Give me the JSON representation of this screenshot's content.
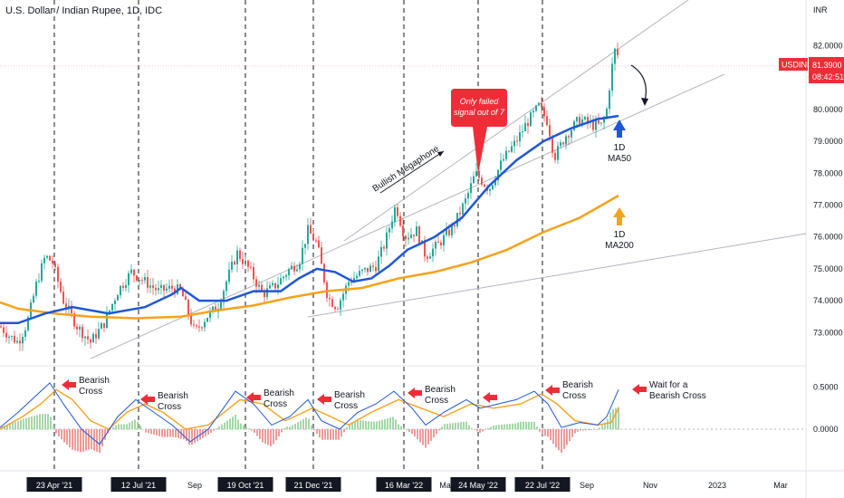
{
  "chart_data": {
    "type": "line",
    "title": "U.S. Dollar / Indian Rupee, 1D, IDC",
    "symbol": "USDINR",
    "y_unit": "INR",
    "last_price": "81.3900",
    "countdown": "08:42:51",
    "ylim": [
      72.6,
      82.6
    ],
    "price_ticks": [
      "82.0000",
      "81.0000",
      "80.0000",
      "79.0000",
      "78.0000",
      "77.0000",
      "76.0000",
      "75.0000",
      "74.0000",
      "73.0000"
    ],
    "osc_ticks": [
      "0.5000",
      "0.0000"
    ],
    "x_labels": [
      {
        "label": "Sep",
        "x": 215
      },
      {
        "label": "Mar",
        "x": 493
      },
      {
        "label": "Jul",
        "x": 577
      },
      {
        "label": "Sep",
        "x": 648
      },
      {
        "label": "Nov",
        "x": 718
      },
      {
        "label": "2023",
        "x": 792
      },
      {
        "label": "Mar",
        "x": 862
      }
    ],
    "date_markers": [
      "23 Apr '21",
      "12 Jul '21",
      "19 Oct '21",
      "21 Dec '21",
      "16 Mar '22",
      "24 May '22",
      "22 Jul '22"
    ],
    "colors": {
      "ma50": "#1e56d9",
      "ma200": "#f7a21b",
      "price_up": "#26a69a",
      "price_down": "#ef5350",
      "arrow": "#ef2d38",
      "channel": "#b2b5be"
    },
    "series": [
      {
        "name": "MA50"
      },
      {
        "name": "MA200"
      }
    ],
    "ma50": [
      [
        0,
        73.3
      ],
      [
        20,
        73.3
      ],
      [
        50,
        73.6
      ],
      [
        80,
        73.8
      ],
      [
        120,
        73.6
      ],
      [
        160,
        73.8
      ],
      [
        190,
        74.2
      ],
      [
        200,
        74.4
      ],
      [
        220,
        74.0
      ],
      [
        250,
        74.0
      ],
      [
        280,
        74.3
      ],
      [
        310,
        74.3
      ],
      [
        330,
        74.7
      ],
      [
        350,
        75.0
      ],
      [
        370,
        74.9
      ],
      [
        390,
        74.6
      ],
      [
        410,
        74.7
      ],
      [
        430,
        75.1
      ],
      [
        450,
        75.6
      ],
      [
        480,
        76.0
      ],
      [
        510,
        76.6
      ],
      [
        540,
        77.6
      ],
      [
        570,
        78.4
      ],
      [
        600,
        79.0
      ],
      [
        630,
        79.4
      ],
      [
        660,
        79.7
      ],
      [
        683,
        79.8
      ]
    ],
    "ma200": [
      [
        0,
        73.95
      ],
      [
        20,
        73.75
      ],
      [
        60,
        73.6
      ],
      [
        100,
        73.5
      ],
      [
        150,
        73.45
      ],
      [
        200,
        73.5
      ],
      [
        240,
        73.7
      ],
      [
        280,
        73.85
      ],
      [
        320,
        74.1
      ],
      [
        360,
        74.3
      ],
      [
        400,
        74.4
      ],
      [
        440,
        74.7
      ],
      [
        480,
        74.9
      ],
      [
        520,
        75.2
      ],
      [
        560,
        75.6
      ],
      [
        600,
        76.15
      ],
      [
        640,
        76.6
      ],
      [
        683,
        77.3
      ]
    ],
    "price": [
      [
        0,
        73.2
      ],
      [
        10,
        72.9
      ],
      [
        20,
        72.7
      ],
      [
        30,
        73.3
      ],
      [
        40,
        74.5
      ],
      [
        50,
        75.4
      ],
      [
        58,
        75.2
      ],
      [
        70,
        74.0
      ],
      [
        85,
        73.2
      ],
      [
        100,
        72.7
      ],
      [
        115,
        73.3
      ],
      [
        130,
        74.3
      ],
      [
        145,
        74.9
      ],
      [
        160,
        74.6
      ],
      [
        175,
        74.3
      ],
      [
        190,
        74.4
      ],
      [
        200,
        74.3
      ],
      [
        215,
        73.0
      ],
      [
        228,
        73.5
      ],
      [
        240,
        73.8
      ],
      [
        255,
        75.0
      ],
      [
        262,
        75.5
      ],
      [
        275,
        75.0
      ],
      [
        290,
        74.2
      ],
      [
        305,
        74.5
      ],
      [
        320,
        75.0
      ],
      [
        330,
        75.2
      ],
      [
        340,
        76.2
      ],
      [
        350,
        75.8
      ],
      [
        362,
        74.1
      ],
      [
        372,
        73.8
      ],
      [
        385,
        74.6
      ],
      [
        400,
        74.9
      ],
      [
        415,
        75.1
      ],
      [
        425,
        75.8
      ],
      [
        437,
        77.0
      ],
      [
        447,
        76.0
      ],
      [
        460,
        76.2
      ],
      [
        470,
        75.4
      ],
      [
        485,
        75.8
      ],
      [
        500,
        76.3
      ],
      [
        515,
        77.2
      ],
      [
        525,
        78.0
      ],
      [
        540,
        77.5
      ],
      [
        555,
        78.4
      ],
      [
        570,
        79.0
      ],
      [
        580,
        79.5
      ],
      [
        595,
        80.1
      ],
      [
        605,
        79.6
      ],
      [
        612,
        78.5
      ],
      [
        625,
        79.2
      ],
      [
        640,
        79.7
      ],
      [
        655,
        79.5
      ],
      [
        665,
        79.5
      ],
      [
        670,
        80.0
      ],
      [
        675,
        81.2
      ],
      [
        680,
        82.0
      ],
      [
        684,
        81.4
      ]
    ],
    "osc_line1": [
      [
        0,
        0.02
      ],
      [
        20,
        0.2
      ],
      [
        40,
        0.4
      ],
      [
        55,
        0.55
      ],
      [
        70,
        0.3
      ],
      [
        90,
        0.0
      ],
      [
        110,
        -0.18
      ],
      [
        130,
        0.15
      ],
      [
        150,
        0.35
      ],
      [
        170,
        0.2
      ],
      [
        190,
        0.05
      ],
      [
        210,
        -0.15
      ],
      [
        230,
        0.0
      ],
      [
        260,
        0.45
      ],
      [
        280,
        0.3
      ],
      [
        300,
        0.05
      ],
      [
        320,
        0.15
      ],
      [
        340,
        0.35
      ],
      [
        355,
        0.1
      ],
      [
        375,
        0.0
      ],
      [
        395,
        0.2
      ],
      [
        415,
        0.3
      ],
      [
        435,
        0.45
      ],
      [
        455,
        0.25
      ],
      [
        470,
        0.05
      ],
      [
        490,
        0.2
      ],
      [
        515,
        0.35
      ],
      [
        530,
        0.25
      ],
      [
        550,
        0.3
      ],
      [
        570,
        0.35
      ],
      [
        590,
        0.45
      ],
      [
        605,
        0.3
      ],
      [
        620,
        0.02
      ],
      [
        640,
        0.08
      ],
      [
        660,
        0.05
      ],
      [
        670,
        0.15
      ],
      [
        683,
        0.47
      ]
    ],
    "osc_line2": [
      [
        0,
        0.0
      ],
      [
        25,
        0.15
      ],
      [
        45,
        0.3
      ],
      [
        62,
        0.47
      ],
      [
        80,
        0.35
      ],
      [
        100,
        0.1
      ],
      [
        120,
        0.0
      ],
      [
        140,
        0.2
      ],
      [
        160,
        0.3
      ],
      [
        180,
        0.2
      ],
      [
        205,
        0.0
      ],
      [
        230,
        0.05
      ],
      [
        265,
        0.35
      ],
      [
        290,
        0.3
      ],
      [
        315,
        0.1
      ],
      [
        345,
        0.25
      ],
      [
        365,
        0.15
      ],
      [
        385,
        0.05
      ],
      [
        410,
        0.2
      ],
      [
        440,
        0.35
      ],
      [
        465,
        0.25
      ],
      [
        490,
        0.15
      ],
      [
        520,
        0.3
      ],
      [
        545,
        0.25
      ],
      [
        575,
        0.3
      ],
      [
        598,
        0.42
      ],
      [
        615,
        0.3
      ],
      [
        635,
        0.1
      ],
      [
        660,
        0.05
      ],
      [
        675,
        0.08
      ],
      [
        683,
        0.25
      ]
    ],
    "annotations": [
      {
        "id": "bullish-megaphone",
        "text": "Bullish Megaphone"
      },
      {
        "id": "failed-signal",
        "lines": [
          "Only failed",
          "signal out of 7"
        ]
      },
      {
        "id": "ma50-label",
        "lines": [
          "1D",
          "MA50"
        ]
      },
      {
        "id": "ma200-label",
        "lines": [
          "1D",
          "MA200"
        ]
      },
      {
        "id": "bearish-1",
        "lines": [
          "Bearish",
          "Cross"
        ]
      },
      {
        "id": "bearish-2",
        "lines": [
          "Bearish",
          "Cross"
        ]
      },
      {
        "id": "bearish-3",
        "lines": [
          "Bearish",
          "Cross"
        ]
      },
      {
        "id": "bearish-4",
        "lines": [
          "Bearish",
          "Cross"
        ]
      },
      {
        "id": "bearish-5",
        "lines": [
          "Bearish",
          "Cross"
        ]
      },
      {
        "id": "bearish-6",
        "lines": [
          "Bearish",
          "Cross"
        ]
      },
      {
        "id": "wait-bearish",
        "lines": [
          "Wait for a",
          "Bearish Cross"
        ]
      }
    ]
  }
}
